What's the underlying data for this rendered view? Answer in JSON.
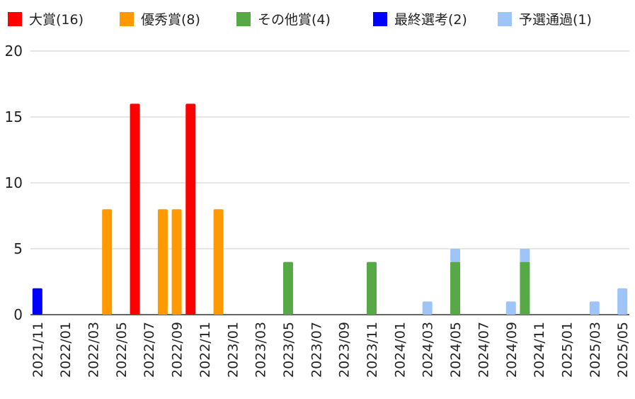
{
  "chart_data": {
    "type": "bar",
    "stacked": true,
    "title": "",
    "xlabel": "",
    "ylabel": "",
    "ylim": [
      0,
      20
    ],
    "y_ticks": [
      0,
      5,
      10,
      15,
      20
    ],
    "grid": true,
    "legend_position": "top",
    "x_tick_labels": [
      "2021/11",
      "2022/01",
      "2022/03",
      "2022/05",
      "2022/07",
      "2022/09",
      "2022/11",
      "2023/01",
      "2023/03",
      "2023/05",
      "2023/07",
      "2023/09",
      "2023/11",
      "2024/01",
      "2024/03",
      "2024/05",
      "2024/07",
      "2024/09",
      "2024/11",
      "2025/01",
      "2025/03",
      "2025/05"
    ],
    "categories": [
      "2021/11",
      "2021/12",
      "2022/01",
      "2022/02",
      "2022/03",
      "2022/04",
      "2022/05",
      "2022/06",
      "2022/07",
      "2022/08",
      "2022/09",
      "2022/10",
      "2022/11",
      "2022/12",
      "2023/01",
      "2023/02",
      "2023/03",
      "2023/04",
      "2023/05",
      "2023/06",
      "2023/07",
      "2023/08",
      "2023/09",
      "2023/10",
      "2023/11",
      "2023/12",
      "2024/01",
      "2024/02",
      "2024/03",
      "2024/04",
      "2024/05",
      "2024/06",
      "2024/07",
      "2024/08",
      "2024/09",
      "2024/10",
      "2024/11",
      "2024/12",
      "2025/01",
      "2025/02",
      "2025/03",
      "2025/04",
      "2025/05"
    ],
    "series": [
      {
        "name": "大賞(16)",
        "color": "#ff0000",
        "values": [
          0,
          0,
          0,
          0,
          0,
          0,
          0,
          16,
          0,
          0,
          0,
          16,
          0,
          0,
          0,
          0,
          0,
          0,
          0,
          0,
          0,
          0,
          0,
          0,
          0,
          0,
          0,
          0,
          0,
          0,
          0,
          0,
          0,
          0,
          0,
          0,
          0,
          0,
          0,
          0,
          0,
          0,
          0
        ]
      },
      {
        "name": "優秀賞(8)",
        "color": "#ff9900",
        "values": [
          0,
          0,
          0,
          0,
          0,
          8,
          0,
          0,
          0,
          8,
          8,
          0,
          0,
          8,
          0,
          0,
          0,
          0,
          0,
          0,
          0,
          0,
          0,
          0,
          0,
          0,
          0,
          0,
          0,
          0,
          0,
          0,
          0,
          0,
          0,
          0,
          0,
          0,
          0,
          0,
          0,
          0,
          0
        ]
      },
      {
        "name": "その他賞(4)",
        "color": "#57a846",
        "values": [
          0,
          0,
          0,
          0,
          0,
          0,
          0,
          0,
          0,
          0,
          0,
          0,
          0,
          0,
          0,
          0,
          0,
          0,
          4,
          0,
          0,
          0,
          0,
          0,
          4,
          0,
          0,
          0,
          0,
          0,
          4,
          0,
          0,
          0,
          0,
          4,
          0,
          0,
          0,
          0,
          0,
          0,
          0
        ]
      },
      {
        "name": "最終選考(2)",
        "color": "#0000ff",
        "values": [
          2,
          0,
          0,
          0,
          0,
          0,
          0,
          0,
          0,
          0,
          0,
          0,
          0,
          0,
          0,
          0,
          0,
          0,
          0,
          0,
          0,
          0,
          0,
          0,
          0,
          0,
          0,
          0,
          0,
          0,
          0,
          0,
          0,
          0,
          0,
          0,
          0,
          0,
          0,
          0,
          0,
          0,
          0
        ]
      },
      {
        "name": "予選通過(1)",
        "color": "#9fc5f8",
        "values": [
          0,
          0,
          0,
          0,
          0,
          0,
          0,
          0,
          0,
          0,
          0,
          0,
          0,
          0,
          0,
          0,
          0,
          0,
          0,
          0,
          0,
          0,
          0,
          0,
          0,
          0,
          0,
          0,
          1,
          0,
          1,
          0,
          0,
          0,
          1,
          1,
          0,
          0,
          0,
          0,
          1,
          0,
          2
        ]
      }
    ]
  }
}
